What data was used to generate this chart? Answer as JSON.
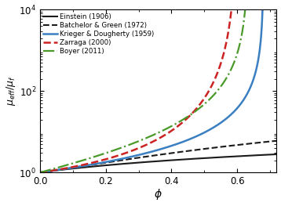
{
  "title": "",
  "xlabel": "$\\phi$",
  "ylabel": "$\\mu_{eff}/\\mu_f$",
  "xlim": [
    0,
    0.72
  ],
  "ylim": [
    1.0,
    10000.0
  ],
  "phi_m_KD": 0.68,
  "eta_KD": 2.5,
  "phi_m_Zarraga": 0.6,
  "phi_m_Boyer": 0.634,
  "legend": [
    "Einstein (1906)",
    "Batchelor & Green (1972)",
    "Krieger & Dougherty (1959)",
    "Zarraga (2000)",
    "Boyer (2011)"
  ],
  "colors": {
    "Einstein": "#1a1a1a",
    "Batchelor": "#1a1a1a",
    "KD": "#3a7fc1",
    "Zarraga": "#cc2222",
    "Boyer": "#4a9a2a"
  },
  "linestyles": {
    "Einstein": "solid",
    "Batchelor": "dashed",
    "KD": "solid",
    "Zarraga": "dashed",
    "Boyer": "dashdot"
  },
  "linewidths": {
    "Einstein": 1.5,
    "Batchelor": 1.5,
    "KD": 1.8,
    "Zarraga": 1.8,
    "Boyer": 1.6
  },
  "background_color": "#ffffff",
  "xticks": [
    0,
    0.2,
    0.4,
    0.6
  ],
  "yticks": [
    1.0,
    100.0,
    10000.0
  ]
}
